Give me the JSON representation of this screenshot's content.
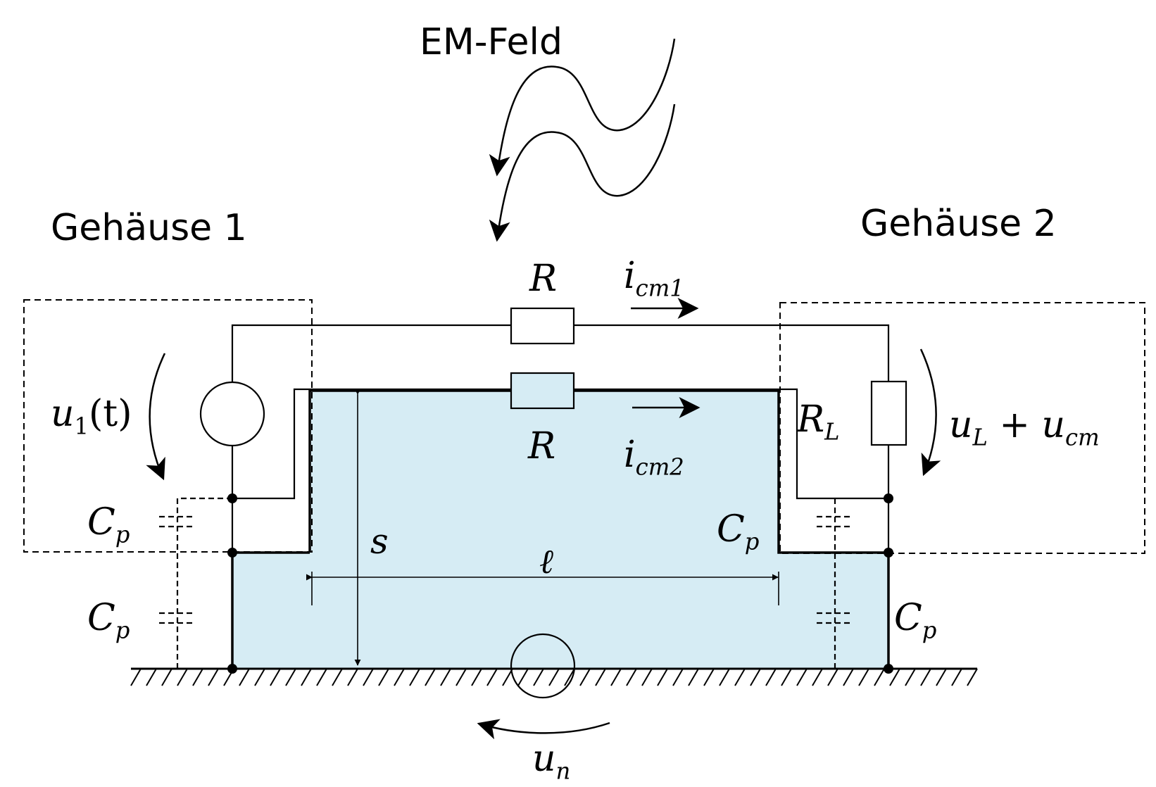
{
  "field_label": "EM-Feld",
  "housing1_label": "Gehäuse 1",
  "housing2_label": "Gehäuse 2",
  "resistor_top": "R",
  "resistor_bottom": "R",
  "current1": {
    "main": "i",
    "sub": "cm1"
  },
  "current2": {
    "main": "i",
    "sub": "cm2"
  },
  "source_voltage": {
    "main": "u",
    "sub": "1",
    "suffix": "(t)"
  },
  "load_resistor": {
    "main": "R",
    "sub": "L"
  },
  "load_voltage": {
    "main": "u",
    "sub1": "L",
    "plus": " + u",
    "sub2": "cm"
  },
  "parasitic_capacitance": {
    "main": "C",
    "sub": "p"
  },
  "spacing_label": "s",
  "length_label": "ℓ",
  "noise_voltage": {
    "main": "u",
    "sub": "n"
  },
  "colors": {
    "loop_area_fill": "#d6ecf4",
    "line": "#000000"
  }
}
